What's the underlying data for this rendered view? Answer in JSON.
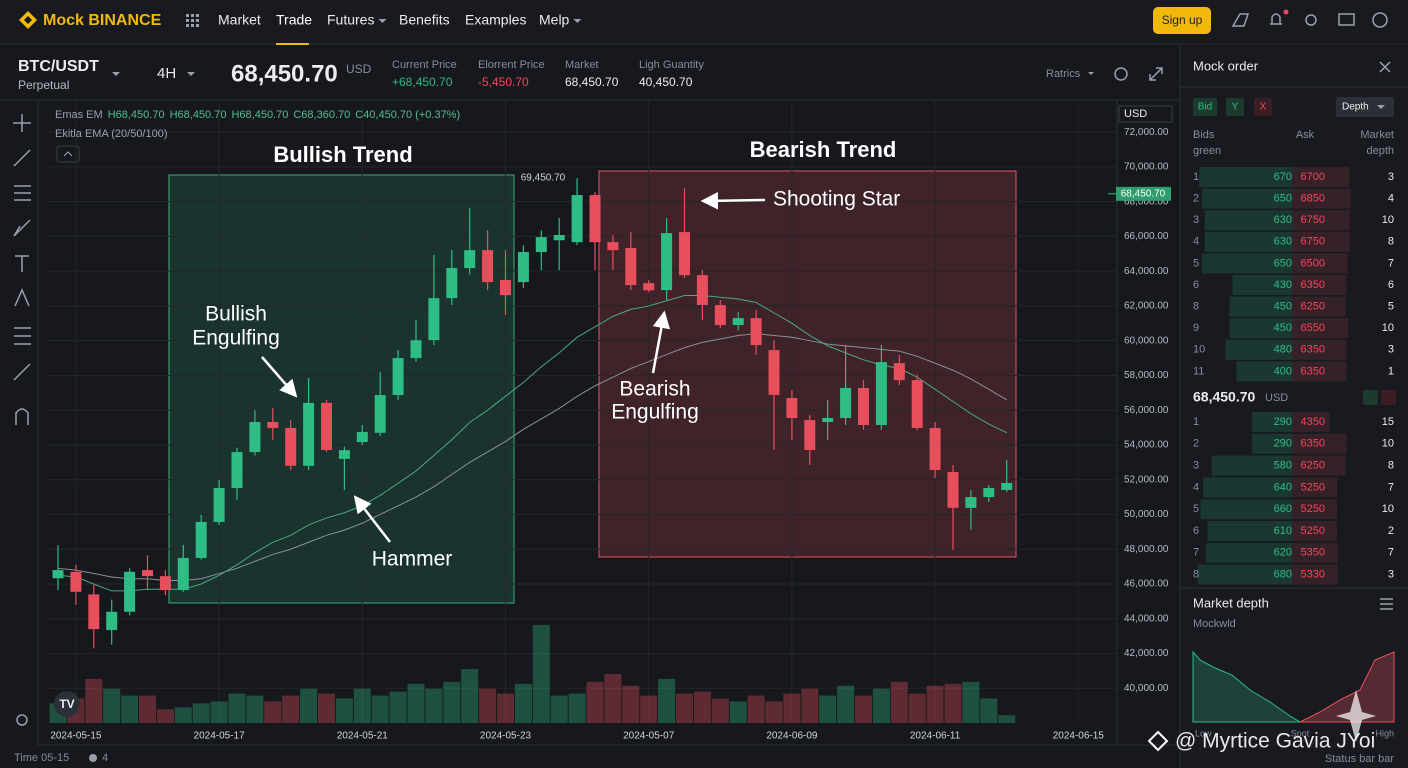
{
  "header": {
    "logo": "Mock BINANCE",
    "nav": [
      "Market",
      "Trade",
      "Futures",
      "Benefits",
      "Examples",
      "Melp"
    ],
    "signup": "Sign up"
  },
  "ticker": {
    "pair": "BTC/USDT",
    "contract": "Perpetual",
    "interval": "4H",
    "price": "68,450.70",
    "currency": "USD",
    "stats": [
      {
        "label": "Current Price",
        "value": "+68,450.70",
        "color": "#2ebd85"
      },
      {
        "label": "Elorrent Price",
        "value": "-5,450.70",
        "color": "#f6465d"
      },
      {
        "label": "Market",
        "value": "68,450.70",
        "color": "#eaecef"
      },
      {
        "label": "Ligh Guantity",
        "value": "40,450.70",
        "color": "#eaecef"
      }
    ],
    "metrics_menu": "Ratrics"
  },
  "chart": {
    "legend_main": [
      "Emas EM",
      "H68,450.70",
      "H68,450.70",
      "H68,450.70",
      "C68,360.70",
      "C40,450.70 (+0.37%)"
    ],
    "legend_ema": "Ekitla EMA (20/50/100)",
    "up_color": "#2ebd85",
    "down_color": "#e84f5c",
    "ylim": [
      38000,
      73850
    ],
    "yticks": [
      {
        "value": 72000,
        "label": "72,000.00"
      },
      {
        "value": 70000,
        "label": "70,000.00"
      },
      {
        "value": 68000,
        "label": "68,000.00"
      },
      {
        "value": 66000,
        "label": "66,000.00"
      },
      {
        "value": 64000,
        "label": "64,000.00"
      },
      {
        "value": 62000,
        "label": "62,000.00"
      },
      {
        "value": 60000,
        "label": "60,000.00"
      },
      {
        "value": 58000,
        "label": "58,000.00"
      },
      {
        "value": 56000,
        "label": "56,000.00"
      },
      {
        "value": 54000,
        "label": "54,000.00"
      },
      {
        "value": 52000,
        "label": "52,000.00"
      },
      {
        "value": 50000,
        "label": "50,000.00"
      },
      {
        "value": 48000,
        "label": "48,000.00"
      },
      {
        "value": 46000,
        "label": "46,000.00"
      },
      {
        "value": 44000,
        "label": "44,000.00"
      },
      {
        "value": 42000,
        "label": "42,000.00"
      },
      {
        "value": 40000,
        "label": "40,000.00"
      }
    ],
    "axis_currency": "USD",
    "last_price": {
      "value": 68450.7,
      "label": "68,450.70"
    },
    "x_labels": [
      "2024-05-15",
      "2024-05-17",
      "2024-05-21",
      "2024-05-23",
      "2024-05-07",
      "2024-06-09",
      "2024-06-11",
      "2024-06-15"
    ],
    "candles": [
      {
        "open": 46330,
        "high": 48230,
        "low": 45650,
        "close": 46800
      },
      {
        "open": 46700,
        "high": 47100,
        "low": 44800,
        "close": 45550
      },
      {
        "open": 45400,
        "high": 45950,
        "low": 42300,
        "close": 43400
      },
      {
        "open": 43350,
        "high": 45100,
        "low": 42500,
        "close": 44400
      },
      {
        "open": 44400,
        "high": 46900,
        "low": 44200,
        "close": 46700
      },
      {
        "open": 46800,
        "high": 47650,
        "low": 45650,
        "close": 46450
      },
      {
        "open": 46450,
        "high": 46800,
        "low": 45350,
        "close": 45650
      },
      {
        "open": 45650,
        "high": 48250,
        "low": 45550,
        "close": 47500
      },
      {
        "open": 47500,
        "high": 49980,
        "low": 47400,
        "close": 49570
      },
      {
        "open": 49570,
        "high": 51990,
        "low": 49400,
        "close": 51520
      },
      {
        "open": 51520,
        "high": 53830,
        "low": 50840,
        "close": 53590
      },
      {
        "open": 53590,
        "high": 56000,
        "low": 53400,
        "close": 55320
      },
      {
        "open": 55320,
        "high": 56130,
        "low": 54300,
        "close": 54980
      },
      {
        "open": 54980,
        "high": 55440,
        "low": 52560,
        "close": 52800
      },
      {
        "open": 52800,
        "high": 57860,
        "low": 52560,
        "close": 56420
      },
      {
        "open": 56420,
        "high": 56590,
        "low": 53600,
        "close": 53710
      },
      {
        "open": 53200,
        "high": 53900,
        "low": 51400,
        "close": 53700
      },
      {
        "open": 54170,
        "high": 55150,
        "low": 53990,
        "close": 54750
      },
      {
        "open": 54700,
        "high": 58200,
        "low": 54520,
        "close": 56870
      },
      {
        "open": 56870,
        "high": 59470,
        "low": 56590,
        "close": 59000
      },
      {
        "open": 59000,
        "high": 61190,
        "low": 58800,
        "close": 60030
      },
      {
        "open": 60030,
        "high": 64930,
        "low": 59750,
        "close": 62450
      },
      {
        "open": 62450,
        "high": 65210,
        "low": 62050,
        "close": 64180
      },
      {
        "open": 64180,
        "high": 67630,
        "low": 63800,
        "close": 65210
      },
      {
        "open": 65210,
        "high": 66360,
        "low": 62910,
        "close": 63370
      },
      {
        "open": 63490,
        "high": 65210,
        "low": 61470,
        "close": 62620
      },
      {
        "open": 63370,
        "high": 65500,
        "low": 63030,
        "close": 65100
      },
      {
        "open": 65100,
        "high": 66360,
        "low": 64060,
        "close": 65960
      },
      {
        "open": 65780,
        "high": 67060,
        "low": 64060,
        "close": 66080
      },
      {
        "open": 65670,
        "high": 69350,
        "low": 65500,
        "close": 68380
      },
      {
        "open": 68380,
        "high": 68550,
        "low": 64060,
        "close": 65670
      },
      {
        "open": 65670,
        "high": 66070,
        "low": 64060,
        "close": 65210
      },
      {
        "open": 65330,
        "high": 66250,
        "low": 62910,
        "close": 63200
      },
      {
        "open": 63310,
        "high": 63480,
        "low": 62800,
        "close": 62900
      },
      {
        "open": 62910,
        "high": 67060,
        "low": 62340,
        "close": 66190
      },
      {
        "open": 66250,
        "high": 68780,
        "low": 63600,
        "close": 63770
      },
      {
        "open": 63770,
        "high": 64060,
        "low": 61190,
        "close": 62050
      },
      {
        "open": 62050,
        "high": 62340,
        "low": 60730,
        "close": 60900
      },
      {
        "open": 60900,
        "high": 61650,
        "low": 60600,
        "close": 61300
      },
      {
        "open": 61300,
        "high": 61750,
        "low": 59180,
        "close": 59750
      },
      {
        "open": 59460,
        "high": 60030,
        "low": 53710,
        "close": 56880
      },
      {
        "open": 56700,
        "high": 57160,
        "low": 54290,
        "close": 55550
      },
      {
        "open": 55430,
        "high": 55720,
        "low": 52850,
        "close": 53710
      },
      {
        "open": 55320,
        "high": 56590,
        "low": 54290,
        "close": 55550
      },
      {
        "open": 55550,
        "high": 59750,
        "low": 55150,
        "close": 57280
      },
      {
        "open": 57280,
        "high": 57730,
        "low": 54870,
        "close": 55150
      },
      {
        "open": 55150,
        "high": 59750,
        "low": 54870,
        "close": 58770
      },
      {
        "open": 58710,
        "high": 59180,
        "low": 57450,
        "close": 57730
      },
      {
        "open": 57730,
        "high": 58030,
        "low": 54870,
        "close": 54980
      },
      {
        "open": 54980,
        "high": 55320,
        "low": 52100,
        "close": 52560
      },
      {
        "open": 52440,
        "high": 52850,
        "low": 47970,
        "close": 50380
      },
      {
        "open": 50380,
        "high": 51410,
        "low": 49120,
        "close": 51000
      },
      {
        "open": 51000,
        "high": 51700,
        "low": 50720,
        "close": 51520
      },
      {
        "open": 51410,
        "high": 53130,
        "low": 51300,
        "close": 51810
      }
    ],
    "volume_lim": [
      0,
      100
    ],
    "volumes": [
      20,
      25,
      45,
      35,
      28,
      28,
      14,
      16,
      20,
      22,
      30,
      28,
      22,
      28,
      35,
      30,
      25,
      35,
      28,
      32,
      40,
      35,
      42,
      55,
      35,
      30,
      40,
      100,
      28,
      30,
      42,
      50,
      38,
      28,
      45,
      30,
      32,
      25,
      22,
      28,
      22,
      30,
      35,
      28,
      38,
      28,
      35,
      42,
      30,
      38,
      40,
      42,
      25,
      8
    ],
    "ema_lines": [
      {
        "color": "#4aa97d",
        "values": [
          46500,
          46400,
          46000,
          45600,
          45600,
          45700,
          45700,
          45700,
          46000,
          46500,
          47100,
          47800,
          48400,
          48800,
          49400,
          49800,
          50100,
          50500,
          51100,
          51800,
          52500,
          53400,
          54300,
          55300,
          56000,
          56800,
          57600,
          58500,
          59300,
          60200,
          60800,
          61400,
          61800,
          62000,
          62300,
          62600,
          62600,
          62500,
          62400,
          62200,
          61600,
          61000,
          60300,
          59700,
          59300,
          58900,
          58600,
          58400,
          57900,
          57200,
          56500,
          55800,
          55200,
          54700
        ]
      },
      {
        "color": "#8a8f98",
        "values": [
          46900,
          46800,
          46600,
          46400,
          46300,
          46300,
          46200,
          46200,
          46300,
          46600,
          46900,
          47300,
          47700,
          48000,
          48400,
          48800,
          49100,
          49500,
          50000,
          50500,
          51000,
          51600,
          52300,
          53000,
          53600,
          54200,
          54900,
          55500,
          56100,
          56800,
          57400,
          57900,
          58400,
          58800,
          59200,
          59600,
          59900,
          60100,
          60300,
          60400,
          60300,
          60200,
          60000,
          59800,
          59700,
          59600,
          59500,
          59400,
          59100,
          58700,
          58300,
          57800,
          57200,
          56600
        ]
      }
    ],
    "annotations": {
      "bullish_trend": "Bullish Trend",
      "bearish_trend": "Bearish Trend",
      "bullish_engulfing": [
        "Bullish",
        "Engulfing"
      ],
      "hammer": "Hammer",
      "bearish_engulfing": [
        "Bearish",
        "Engulfing"
      ],
      "shooting_star": "Shooting Star",
      "peak": "69,450.70"
    }
  },
  "order_book": {
    "title": "Mock order",
    "tabs": [
      "Bid",
      "Y",
      "X"
    ],
    "view": "Depth",
    "columns": [
      [
        "Bids",
        "green"
      ],
      [
        "Ask"
      ],
      [
        "Market",
        "depth"
      ]
    ],
    "upper_rows": [
      [
        1,
        670,
        6700,
        3
      ],
      [
        2,
        650,
        6850,
        4
      ],
      [
        3,
        630,
        6750,
        10
      ],
      [
        4,
        630,
        6750,
        8
      ],
      [
        5,
        650,
        6500,
        7
      ],
      [
        6,
        430,
        6350,
        6
      ],
      [
        8,
        450,
        6250,
        5
      ],
      [
        9,
        450,
        6550,
        10
      ],
      [
        10,
        480,
        6350,
        3
      ],
      [
        11,
        400,
        6350,
        1
      ]
    ],
    "mid_price": "68,450.70",
    "mid_currency": "USD",
    "lower_rows": [
      [
        1,
        290,
        4350,
        15
      ],
      [
        2,
        290,
        6350,
        10
      ],
      [
        3,
        580,
        6250,
        8
      ],
      [
        4,
        640,
        5250,
        7
      ],
      [
        5,
        660,
        5250,
        10
      ],
      [
        6,
        610,
        5250,
        2
      ],
      [
        7,
        620,
        5350,
        7
      ],
      [
        8,
        680,
        5330,
        3
      ]
    ]
  },
  "market_depth": {
    "title": "Market depth",
    "subtitle": "Mockwld",
    "axis": [
      "Low",
      "Spot",
      "High"
    ]
  },
  "footer": {
    "time": "Time 05-15",
    "count": "4",
    "status": "Status bar bar",
    "watermark": "@ Myrtice Gavia JYoi"
  }
}
